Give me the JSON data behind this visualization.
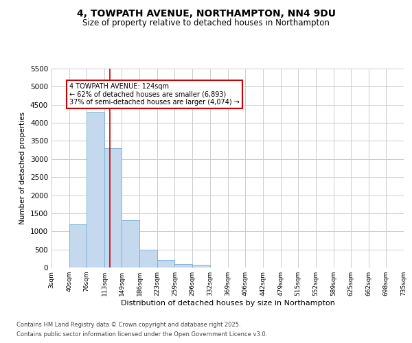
{
  "title": "4, TOWPATH AVENUE, NORTHAMPTON, NN4 9DU",
  "subtitle": "Size of property relative to detached houses in Northampton",
  "xlabel": "Distribution of detached houses by size in Northampton",
  "ylabel": "Number of detached properties",
  "footer_line1": "Contains HM Land Registry data © Crown copyright and database right 2025.",
  "footer_line2": "Contains public sector information licensed under the Open Government Licence v3.0.",
  "annotation_line1": "4 TOWPATH AVENUE: 124sqm",
  "annotation_line2": "← 62% of detached houses are smaller (6,893)",
  "annotation_line3": "37% of semi-detached houses are larger (4,074) →",
  "property_size": 124,
  "bin_edges": [
    3,
    40,
    76,
    113,
    149,
    186,
    223,
    259,
    296,
    332,
    369,
    406,
    442,
    479,
    515,
    552,
    589,
    625,
    662,
    698,
    735
  ],
  "bar_heights": [
    0,
    1200,
    4300,
    3300,
    1300,
    500,
    200,
    100,
    70,
    0,
    0,
    0,
    0,
    0,
    0,
    0,
    0,
    0,
    0,
    0
  ],
  "bar_color": "#c5d9ee",
  "bar_edgecolor": "#7aadd4",
  "vline_color": "#cc0000",
  "annotation_box_edgecolor": "#cc0000",
  "background_color": "#ffffff",
  "grid_color": "#cccccc",
  "ylim": [
    0,
    5500
  ],
  "yticks": [
    0,
    500,
    1000,
    1500,
    2000,
    2500,
    3000,
    3500,
    4000,
    4500,
    5000,
    5500
  ]
}
